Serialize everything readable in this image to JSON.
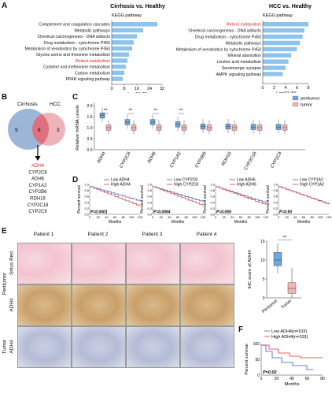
{
  "panels": {
    "a": "A",
    "b": "B",
    "c": "C",
    "d": "D",
    "e": "E",
    "f": "F"
  },
  "panel_a": {
    "left": {
      "title": "Cirrhosis vs. Healthy",
      "subtitle": "KEGG pathway",
      "xlabel": "-Log10 (P)",
      "ticks": [
        "0",
        "8",
        "16",
        "24",
        "32"
      ],
      "bar_color": "#8dc3ec",
      "highlight_color": "#e5251f",
      "pathways": [
        {
          "name": "Complement and coagulation cascades",
          "value": 29,
          "highlight": false
        },
        {
          "name": "Metabolic pathways",
          "value": 20,
          "highlight": false
        },
        {
          "name": "Chemical carcinogenesis - DNA adducts",
          "value": 16,
          "highlight": false
        },
        {
          "name": "Drug metabolism - cytochrome P450",
          "value": 14,
          "highlight": false
        },
        {
          "name": "Metabolism of xenobiotics by cytochrome P450",
          "value": 13,
          "highlight": false
        },
        {
          "name": "Glycine,serine and threonine metabolism",
          "value": 11,
          "highlight": false
        },
        {
          "name": "Retinol metabolism",
          "value": 10,
          "highlight": true
        },
        {
          "name": "Cysteine and methionine metabolism",
          "value": 9,
          "highlight": false
        },
        {
          "name": "Carbon metabolism",
          "value": 8,
          "highlight": false
        },
        {
          "name": "PPAR signaling pathway",
          "value": 7,
          "highlight": false
        }
      ]
    },
    "right": {
      "title": "HCC vs. Healthy",
      "subtitle": "KEGG pathway",
      "xlabel": "-Log10 (P)",
      "ticks": [
        "0",
        "2",
        "4",
        "6",
        "8"
      ],
      "pathways": [
        {
          "name": "Retinol metabolism",
          "value": 8,
          "highlight": true
        },
        {
          "name": "Chemical carcinogenesis - DNA adducts",
          "value": 7.3,
          "highlight": false
        },
        {
          "name": "Drug metabolism - cytochrome P450",
          "value": 7.0,
          "highlight": false
        },
        {
          "name": "Metabolic pathways",
          "value": 6.5,
          "highlight": false
        },
        {
          "name": "Metabolism of xenobiotics by cytochrome P450",
          "value": 6.0,
          "highlight": false
        },
        {
          "name": "Mineral absorption",
          "value": 5.0,
          "highlight": false
        },
        {
          "name": "Linoleic acid metabolism",
          "value": 4.5,
          "highlight": false
        },
        {
          "name": "Serotonergic synapse",
          "value": 4.0,
          "highlight": false
        },
        {
          "name": "AMPK signaling pathway",
          "value": 3.5,
          "highlight": false
        }
      ]
    }
  },
  "panel_b": {
    "left_label": "Cirrhosis",
    "right_label": "HCC",
    "left_count": "9",
    "overlap_count": "8",
    "right_count": "3",
    "left_color": "#8aa9cf",
    "right_color": "#e8a0a8",
    "overlap_color": "#e07080",
    "genes": [
      {
        "name": "ADH4",
        "highlight": true
      },
      {
        "name": "CYP2C8",
        "highlight": false
      },
      {
        "name": "ADH6",
        "highlight": false
      },
      {
        "name": "CYP1A2",
        "highlight": false
      },
      {
        "name": "CYP2B6",
        "highlight": false
      },
      {
        "name": "RDH16",
        "highlight": false
      },
      {
        "name": "CYP2C18",
        "highlight": false
      },
      {
        "name": "CYP2C9",
        "highlight": false
      }
    ]
  },
  "panel_c": {
    "ylabel": "Relative mRNA Levels",
    "yticks": [
      "0.0",
      "0.5",
      "1.0",
      "1.5",
      "2.0"
    ],
    "legend": [
      {
        "name": "peritumor",
        "color": "#6fa8dc"
      },
      {
        "name": "tumor",
        "color": "#f4b4b4"
      }
    ],
    "genes": [
      "ADH4",
      "CYP2C8",
      "ADH6",
      "CYP1A2",
      "CYP2B6",
      "RDH16",
      "CYP2C18",
      "CYP2C9"
    ],
    "significance": [
      "**",
      "**",
      "**",
      "**",
      "",
      "",
      "",
      ""
    ]
  },
  "panel_d": {
    "ylabel": "Percent survival",
    "xlabel": "Months",
    "xticks": [
      "0",
      "20",
      "40",
      "60",
      "80",
      "100",
      "120"
    ],
    "yticks": [
      "0.0",
      "0.2",
      "0.4",
      "0.6",
      "0.8",
      "1.0"
    ],
    "plots": [
      {
        "low": "Low ADH4",
        "high": "High ADH4",
        "p": "P=0.0001"
      },
      {
        "low": "Low CYP2C8",
        "high": "High CYP2C8",
        "p": "P=0.0064"
      },
      {
        "low": "Low ADH6",
        "high": "High ADH6",
        "p": "P=0.059"
      },
      {
        "low": "Low CYP1A2",
        "high": "High CYP1A2",
        "p": "P=0.93"
      }
    ],
    "low_color": "#3a55c4",
    "high_color": "#e03a30"
  },
  "panel_e": {
    "patients": [
      "Patient 1",
      "Patient 2",
      "Patient 3",
      "Patient 4"
    ],
    "row_group_peritumor": "Peritumor",
    "row_group_tumor": "Tumor",
    "rows": [
      "Sirius Red",
      "ADH4",
      "ADH4"
    ],
    "box_ylabel": "IHC score of ADH4",
    "box_yticks": [
      "0",
      "5",
      "10",
      "15"
    ],
    "box_groups": [
      "Peritumor",
      "Tumor"
    ],
    "box_sig": "**"
  },
  "panel_f": {
    "low": "Low ADH4(n=103)",
    "high": "High ADH4(n=103)",
    "ylabel": "Percent survival",
    "xlabel": "Months",
    "xticks": [
      "0",
      "20",
      "40",
      "60",
      "80"
    ],
    "yticks": [
      "0",
      "50",
      "100"
    ],
    "p": "P=0.02"
  }
}
